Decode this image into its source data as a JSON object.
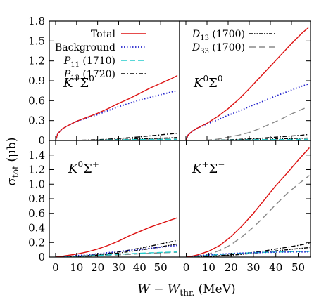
{
  "figure": {
    "ylabel": "σ",
    "ylabel_sub": "tot",
    "ylabel_unit": " (μb)",
    "xlabel_w": "W",
    "xlabel_minus": " − ",
    "xlabel_wthr": "W",
    "xlabel_sub": "thr.",
    "xlabel_unit": " (MeV)"
  },
  "legend_left": [
    {
      "key": "total",
      "text": "Total",
      "sub": "",
      "tail": ""
    },
    {
      "key": "background",
      "text": "Background",
      "sub": "",
      "tail": ""
    },
    {
      "key": "p11",
      "text": "P",
      "sub": "11",
      "tail": " (1710)"
    },
    {
      "key": "p13",
      "text": "P",
      "sub": "13",
      "tail": " (1720)"
    }
  ],
  "legend_right": [
    {
      "key": "d13",
      "text": "D",
      "sub": "13",
      "tail": " (1700)"
    },
    {
      "key": "d33",
      "text": "D",
      "sub": "33",
      "tail": " (1700)"
    }
  ],
  "styles": {
    "total": {
      "color": "#dd1111",
      "dash": ""
    },
    "background": {
      "color": "#2222cc",
      "dash": "1.5 2.5"
    },
    "p11": {
      "color": "#22cccc",
      "dash": "8 4"
    },
    "p13": {
      "color": "#000000",
      "dash": "6 2.5 1.5 2.5"
    },
    "d13": {
      "color": "#000000",
      "dash": "5 2 1.5 2 1.5 2"
    },
    "d33": {
      "color": "#888888",
      "dash": "9 5"
    }
  },
  "chart_data": [
    {
      "type": "line",
      "panel": "K+Σ0",
      "label_k": "K",
      "label_ksup": "+",
      "label_s": "Σ",
      "label_ssup": "0",
      "xlim": [
        -3,
        59
      ],
      "ylim": [
        0,
        1.8
      ],
      "yticks": [
        "0",
        "0.3",
        "0.6",
        "0.9",
        "1.2",
        "1.5",
        "1.8"
      ],
      "xticks": [
        "0",
        "10",
        "20",
        "30",
        "40",
        "50"
      ],
      "x": [
        0,
        1,
        3,
        5,
        10,
        15,
        20,
        25,
        30,
        35,
        40,
        45,
        50,
        55,
        58
      ],
      "series": [
        {
          "key": "total",
          "values": [
            0,
            0.1,
            0.17,
            0.21,
            0.29,
            0.35,
            0.41,
            0.48,
            0.56,
            0.63,
            0.71,
            0.79,
            0.86,
            0.93,
            0.98
          ]
        },
        {
          "key": "background",
          "values": [
            0,
            0.1,
            0.17,
            0.21,
            0.29,
            0.34,
            0.39,
            0.45,
            0.51,
            0.56,
            0.61,
            0.65,
            0.69,
            0.73,
            0.75
          ]
        },
        {
          "key": "p11",
          "values": [
            0,
            0,
            0,
            0,
            0,
            0,
            0.005,
            0.008,
            0.01,
            0.012,
            0.014,
            0.015,
            0.016,
            0.017,
            0.018
          ]
        },
        {
          "key": "p13",
          "values": [
            0,
            0,
            0,
            0,
            0.002,
            0.006,
            0.012,
            0.02,
            0.03,
            0.042,
            0.055,
            0.07,
            0.085,
            0.1,
            0.11
          ]
        },
        {
          "key": "d13",
          "values": [
            0,
            0,
            0,
            0,
            0,
            0.003,
            0.006,
            0.01,
            0.015,
            0.02,
            0.025,
            0.03,
            0.035,
            0.04,
            0.045
          ]
        },
        {
          "key": "d33",
          "values": [
            0,
            0,
            0,
            0,
            0,
            0.001,
            0.003,
            0.005,
            0.008,
            0.012,
            0.016,
            0.02,
            0.025,
            0.03,
            0.033
          ]
        }
      ]
    },
    {
      "type": "line",
      "panel": "K0Σ0",
      "label_k": "K",
      "label_ksup": "0",
      "label_s": "Σ",
      "label_ssup": "0",
      "xlim": [
        -3,
        59
      ],
      "ylim": [
        0,
        1.8
      ],
      "yticks": [],
      "xticks": [
        "0",
        "10",
        "20",
        "30",
        "40",
        "50"
      ],
      "x": [
        0,
        1,
        3,
        5,
        10,
        15,
        20,
        25,
        30,
        35,
        40,
        45,
        50,
        55,
        58
      ],
      "series": [
        {
          "key": "total",
          "values": [
            0,
            0.08,
            0.14,
            0.18,
            0.26,
            0.36,
            0.48,
            0.62,
            0.78,
            0.95,
            1.12,
            1.29,
            1.46,
            1.62,
            1.7
          ]
        },
        {
          "key": "background",
          "values": [
            0,
            0.08,
            0.14,
            0.18,
            0.25,
            0.31,
            0.38,
            0.44,
            0.51,
            0.57,
            0.64,
            0.7,
            0.76,
            0.82,
            0.85
          ]
        },
        {
          "key": "p11",
          "values": [
            0,
            0,
            0,
            0,
            0.002,
            0.004,
            0.006,
            0.008,
            0.01,
            0.012,
            0.013,
            0.014,
            0.015,
            0.016,
            0.017
          ]
        },
        {
          "key": "p13",
          "values": [
            0,
            0,
            0,
            0,
            0.002,
            0.005,
            0.01,
            0.017,
            0.025,
            0.034,
            0.045,
            0.056,
            0.068,
            0.08,
            0.09
          ]
        },
        {
          "key": "d13",
          "values": [
            0,
            0,
            0,
            0,
            0.001,
            0.003,
            0.006,
            0.01,
            0.014,
            0.018,
            0.022,
            0.026,
            0.03,
            0.034,
            0.037
          ]
        },
        {
          "key": "d33",
          "values": [
            0,
            0,
            0,
            0,
            0.005,
            0.02,
            0.05,
            0.08,
            0.12,
            0.18,
            0.25,
            0.32,
            0.4,
            0.47,
            0.51
          ]
        }
      ]
    },
    {
      "type": "line",
      "panel": "K0Σ+",
      "label_k": "K",
      "label_ksup": "0",
      "label_s": "Σ",
      "label_ssup": "+",
      "xlim": [
        -3,
        59
      ],
      "ylim": [
        0,
        1.6
      ],
      "yticks": [
        "0",
        "0.2",
        "0.4",
        "0.6",
        "0.8",
        "1.0",
        "1.2",
        "1.4"
      ],
      "xticks": [
        "0",
        "10",
        "20",
        "30",
        "40",
        "50"
      ],
      "x": [
        0,
        1,
        3,
        5,
        10,
        15,
        20,
        25,
        30,
        35,
        40,
        45,
        50,
        55,
        58
      ],
      "series": [
        {
          "key": "total",
          "values": [
            0,
            0.003,
            0.01,
            0.02,
            0.04,
            0.07,
            0.11,
            0.16,
            0.22,
            0.29,
            0.35,
            0.41,
            0.46,
            0.51,
            0.54
          ]
        },
        {
          "key": "background",
          "values": [
            0,
            0.002,
            0.005,
            0.01,
            0.02,
            0.03,
            0.045,
            0.06,
            0.075,
            0.09,
            0.105,
            0.12,
            0.135,
            0.15,
            0.16
          ]
        },
        {
          "key": "p11",
          "values": [
            0,
            0.001,
            0.003,
            0.005,
            0.01,
            0.016,
            0.022,
            0.03,
            0.037,
            0.045,
            0.052,
            0.058,
            0.063,
            0.068,
            0.07
          ]
        },
        {
          "key": "p13",
          "values": [
            0,
            0,
            0.002,
            0.004,
            0.01,
            0.02,
            0.035,
            0.05,
            0.07,
            0.095,
            0.12,
            0.15,
            0.18,
            0.21,
            0.23
          ]
        },
        {
          "key": "d13",
          "values": [
            0,
            0,
            0.002,
            0.004,
            0.008,
            0.015,
            0.025,
            0.04,
            0.055,
            0.075,
            0.095,
            0.115,
            0.14,
            0.165,
            0.18
          ]
        },
        {
          "key": "d33",
          "values": [
            0,
            0,
            0.001,
            0.002,
            0.005,
            0.01,
            0.016,
            0.022,
            0.03,
            0.037,
            0.045,
            0.052,
            0.058,
            0.063,
            0.066
          ]
        }
      ]
    },
    {
      "type": "line",
      "panel": "K+Σ−",
      "label_k": "K",
      "label_ksup": "+",
      "label_s": "Σ",
      "label_ssup": "−",
      "xlim": [
        -3,
        55.5
      ],
      "ylim": [
        0,
        1.6
      ],
      "yticks": [],
      "xticks": [
        "0",
        "10",
        "20",
        "30",
        "40",
        "50"
      ],
      "x": [
        0,
        1,
        3,
        5,
        10,
        15,
        20,
        25,
        30,
        35,
        40,
        45,
        50,
        55
      ],
      "series": [
        {
          "key": "total",
          "values": [
            0,
            0.004,
            0.015,
            0.03,
            0.08,
            0.16,
            0.28,
            0.43,
            0.6,
            0.79,
            0.98,
            1.15,
            1.33,
            1.5
          ]
        },
        {
          "key": "background",
          "values": [
            0,
            0.005,
            0.012,
            0.018,
            0.03,
            0.04,
            0.048,
            0.055,
            0.06,
            0.064,
            0.067,
            0.069,
            0.07,
            0.07
          ]
        },
        {
          "key": "p11",
          "values": [
            0,
            0.003,
            0.008,
            0.013,
            0.025,
            0.035,
            0.045,
            0.053,
            0.06,
            0.065,
            0.069,
            0.072,
            0.075,
            0.077
          ]
        },
        {
          "key": "p13",
          "values": [
            0,
            0,
            0.002,
            0.004,
            0.01,
            0.02,
            0.032,
            0.047,
            0.065,
            0.085,
            0.11,
            0.135,
            0.16,
            0.19
          ]
        },
        {
          "key": "d13",
          "values": [
            0,
            0,
            0.001,
            0.003,
            0.008,
            0.015,
            0.025,
            0.038,
            0.052,
            0.068,
            0.085,
            0.1,
            0.115,
            0.13
          ]
        },
        {
          "key": "d33",
          "values": [
            0,
            0.001,
            0.005,
            0.01,
            0.04,
            0.09,
            0.17,
            0.28,
            0.41,
            0.56,
            0.72,
            0.87,
            1.0,
            1.12
          ]
        }
      ]
    }
  ]
}
